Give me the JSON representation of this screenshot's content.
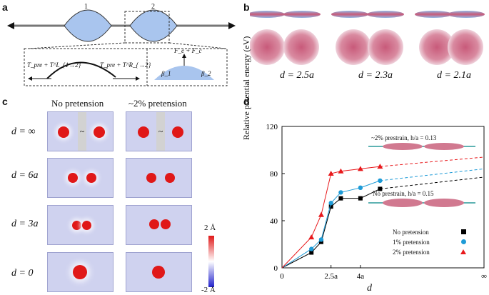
{
  "panels": {
    "a": "a",
    "b": "b",
    "c": "c",
    "d": "d"
  },
  "panel_a": {
    "bubble1": "1",
    "bubble2": "2",
    "left_force": "T_pre + T^L_{1→2}",
    "right_force": "T_pre + T^R_{→2}",
    "top_force": "F_e + F_c",
    "angle_left": "β_1",
    "angle_right": "β_2"
  },
  "panel_b": {
    "labels": [
      "d = 2.5a",
      "d = 2.3a",
      "d = 2.1a"
    ]
  },
  "panel_c": {
    "col_headers": [
      "No pretension",
      "~2% pretension"
    ],
    "row_labels": [
      "d = ∞",
      "d = 6a",
      "d = 3a",
      "d = 0"
    ],
    "gap_symbol": "~",
    "colorbar_max": "2 Å",
    "colorbar_min": "-2 Å"
  },
  "panel_d": {
    "annotation_top": "~2% prestrain, h/a = 0.13",
    "annotation_bottom": "No prestrain, h/a = 0.15"
  },
  "chart_data": {
    "type": "line",
    "title": "",
    "xlabel": "d",
    "ylabel": "Relative potential energy (eV)",
    "ylim": [
      0,
      120
    ],
    "yticks": [
      0,
      40,
      80,
      120
    ],
    "xtick_labels": [
      "0",
      "2.5a",
      "4a",
      "∞"
    ],
    "x_note": "x in units of a; separation d; right end = infinity",
    "series": [
      {
        "name": "No pretension",
        "color": "#000000",
        "marker": "square",
        "x": [
          0,
          1.5,
          2.0,
          2.5,
          3.0,
          4.0,
          5.0
        ],
        "y": [
          0,
          13,
          22,
          52,
          59,
          59,
          67
        ],
        "extrapolate_to": 77
      },
      {
        "name": "1% pretension",
        "color": "#1e9bd7",
        "marker": "circle",
        "x": [
          0,
          1.5,
          2.0,
          2.5,
          3.0,
          4.0,
          5.0
        ],
        "y": [
          0,
          16,
          24,
          55,
          64,
          68,
          74
        ],
        "extrapolate_to": 84
      },
      {
        "name": "2% pretension",
        "color": "#e8191c",
        "marker": "triangle",
        "x": [
          0,
          1.5,
          2.0,
          2.5,
          3.0,
          4.0,
          5.0
        ],
        "y": [
          0,
          26,
          45,
          80,
          82,
          84,
          86
        ],
        "extrapolate_to": 94
      }
    ]
  }
}
